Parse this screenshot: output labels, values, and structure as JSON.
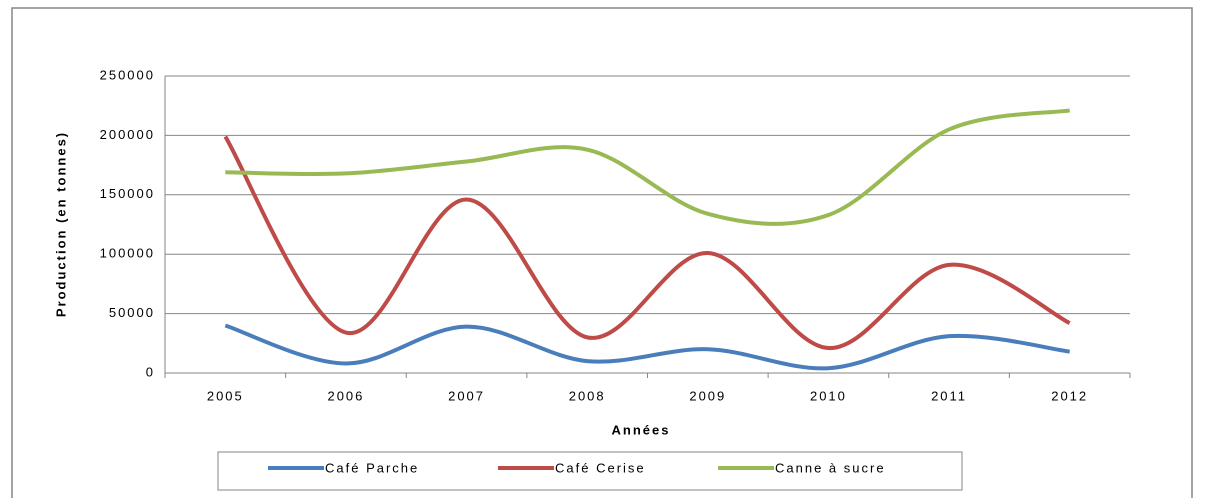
{
  "chart_data": {
    "type": "line",
    "xlabel": "Années",
    "ylabel": "Production (en tonnes)",
    "categories": [
      "2005",
      "2006",
      "2007",
      "2008",
      "2009",
      "2010",
      "2011",
      "2012"
    ],
    "series": [
      {
        "name": "Café Parche",
        "color": "#4a7ebb",
        "values": [
          40000,
          8000,
          39000,
          10000,
          20000,
          4000,
          31000,
          18000
        ]
      },
      {
        "name": "Café Cerise",
        "color": "#be4b48",
        "values": [
          199000,
          34000,
          146000,
          30000,
          101000,
          21000,
          91000,
          42000
        ]
      },
      {
        "name": "Canne à sucre",
        "color": "#98b954",
        "values": [
          169000,
          168000,
          178000,
          188000,
          134000,
          133000,
          205000,
          221000
        ]
      }
    ],
    "ylim": [
      0,
      250000
    ],
    "yticks": [
      0,
      50000,
      100000,
      150000,
      200000,
      250000
    ],
    "grid": true,
    "legend": "bottom",
    "smooth": true
  }
}
